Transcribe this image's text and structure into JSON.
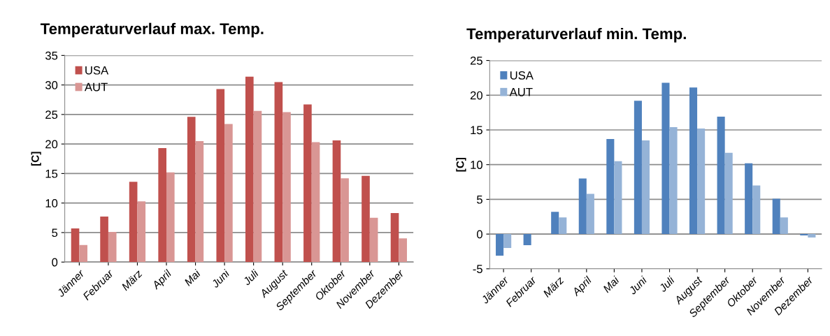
{
  "chart_data": [
    {
      "type": "bar",
      "title": "Temperaturverlauf max. Temp.",
      "ylabel": "[C]",
      "categories": [
        "Jänner",
        "Februar",
        "März",
        "April",
        "Mai",
        "Juni",
        "Juli",
        "August",
        "September",
        "Oktober",
        "November",
        "Dezember"
      ],
      "series": [
        {
          "name": "USA",
          "color": "#c0504d",
          "values": [
            5.7,
            7.7,
            13.6,
            19.3,
            24.6,
            29.3,
            31.4,
            30.5,
            26.7,
            20.6,
            14.6,
            8.3
          ]
        },
        {
          "name": "AUT",
          "color": "#d99694",
          "values": [
            2.9,
            5.1,
            10.3,
            15.2,
            20.5,
            23.4,
            25.6,
            25.4,
            20.3,
            14.2,
            7.5,
            4.0
          ]
        }
      ],
      "ylim": [
        0,
        35
      ],
      "yticks": [
        0,
        5,
        10,
        15,
        20,
        25,
        30,
        35
      ],
      "grid": "y",
      "legend": "top left"
    },
    {
      "type": "bar",
      "title": "Temperaturverlauf min. Temp.",
      "ylabel": "[C]",
      "categories": [
        "Jänner",
        "Februar",
        "März",
        "April",
        "Mai",
        "Juni",
        "Juli",
        "August",
        "September",
        "Oktober",
        "November",
        "Dezember"
      ],
      "series": [
        {
          "name": "USA",
          "color": "#4f81bd",
          "values": [
            -3.1,
            -1.6,
            3.2,
            8.0,
            13.7,
            19.2,
            21.8,
            21.1,
            16.9,
            10.2,
            5.1,
            -0.2
          ]
        },
        {
          "name": "AUT",
          "color": "#95b3d7",
          "values": [
            -2.0,
            null,
            2.4,
            5.8,
            10.5,
            13.5,
            15.4,
            15.2,
            11.7,
            7.0,
            2.4,
            -0.5
          ]
        }
      ],
      "ylim": [
        -5,
        25
      ],
      "yticks": [
        -5,
        0,
        5,
        10,
        15,
        20,
        25
      ],
      "grid": "y",
      "legend": "top left"
    }
  ]
}
